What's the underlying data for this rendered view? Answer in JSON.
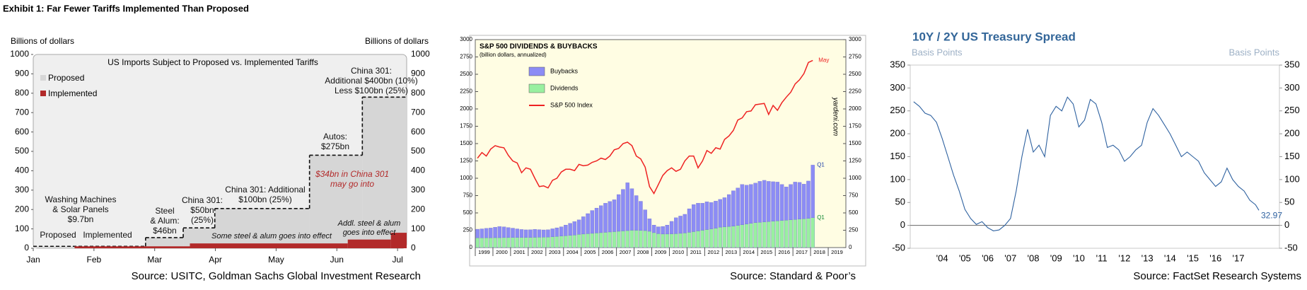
{
  "title": "Exhibit 1: Far Fewer Tariffs Implemented Than Proposed",
  "chart_data": [
    {
      "type": "step-area",
      "title": "US Imports Subject to Proposed vs. Implemented Tariffs",
      "y_label": "Billions of dollars",
      "y2_label": "Billions of dollars",
      "xlim": [
        0,
        6.15
      ],
      "xticks": [
        {
          "value": 0,
          "label": "Jan"
        },
        {
          "value": 1,
          "label": "Feb"
        },
        {
          "value": 2,
          "label": "Mar"
        },
        {
          "value": 3,
          "label": "Apr"
        },
        {
          "value": 4,
          "label": "May"
        },
        {
          "value": 5,
          "label": "Jun"
        },
        {
          "value": 6,
          "label": "Jul"
        }
      ],
      "ylim": [
        0,
        1000
      ],
      "yticks": [
        0,
        100,
        200,
        300,
        400,
        500,
        600,
        700,
        800,
        900,
        1000
      ],
      "series": [
        {
          "name": "Proposed",
          "color": "#d6d6d6",
          "dashed_outline": true,
          "x": [
            0,
            1.85,
            2.47,
            2.99,
            4.55,
            5.42
          ],
          "values": [
            10,
            55,
            105,
            205,
            480,
            780
          ]
        },
        {
          "name": "Implemented",
          "color": "#b22a2a",
          "x": [
            0.68,
            2.58,
            5.18,
            5.89
          ],
          "values": [
            10,
            25,
            45,
            80
          ]
        }
      ],
      "annotations": [
        "Washing Machines\n& Solar Panels\n$9.7bn",
        "Proposed",
        "Implemented",
        "Steel\n& Alum:\n$46bn",
        "China 301:\n$50bn\n(25%)",
        "China 301: Additional\n$100bn (25%)",
        "Autos:\n$275bn",
        "China 301:\nAdditional $400bn (10%)\nLess $100bn (25%)",
        "$34bn in China 301\nmay go into",
        "Some steel & alum goes into effect",
        "Addl. steel & alum\ngoes into effect"
      ],
      "source": "Source: USITC, Goldman Sachs Global Investment Research"
    },
    {
      "type": "stacked-bar-line",
      "title": "S&P 500 DIVIDENDS & BUYBACKS",
      "subtitle": "(billion dollars, annualized)",
      "plot_background": "#fffde3",
      "xlim": [
        1999,
        2020
      ],
      "xticks": [
        1999,
        2000,
        2001,
        2002,
        2003,
        2004,
        2005,
        2006,
        2007,
        2008,
        2009,
        2010,
        2011,
        2012,
        2013,
        2014,
        2015,
        2016,
        2017,
        2018,
        2019
      ],
      "ylim": [
        0,
        3000
      ],
      "yticks": [
        0,
        250,
        500,
        750,
        1000,
        1250,
        1500,
        1750,
        2000,
        2250,
        2500,
        2750,
        3000
      ],
      "y2lim": [
        0,
        3000
      ],
      "y2ticks": [
        0,
        250,
        500,
        750,
        1000,
        1250,
        1500,
        1750,
        2000,
        2250,
        2500,
        2750,
        3000
      ],
      "x": [
        1999.125,
        1999.375,
        1999.625,
        1999.875,
        2000.125,
        2000.375,
        2000.625,
        2000.875,
        2001.125,
        2001.375,
        2001.625,
        2001.875,
        2002.125,
        2002.375,
        2002.625,
        2002.875,
        2003.125,
        2003.375,
        2003.625,
        2003.875,
        2004.125,
        2004.375,
        2004.625,
        2004.875,
        2005.125,
        2005.375,
        2005.625,
        2005.875,
        2006.125,
        2006.375,
        2006.625,
        2006.875,
        2007.125,
        2007.375,
        2007.625,
        2007.875,
        2008.125,
        2008.375,
        2008.625,
        2008.875,
        2009.125,
        2009.375,
        2009.625,
        2009.875,
        2010.125,
        2010.375,
        2010.625,
        2010.875,
        2011.125,
        2011.375,
        2011.625,
        2011.875,
        2012.125,
        2012.375,
        2012.625,
        2012.875,
        2013.125,
        2013.375,
        2013.625,
        2013.875,
        2014.125,
        2014.375,
        2014.625,
        2014.875,
        2015.125,
        2015.375,
        2015.625,
        2015.875,
        2016.125,
        2016.375,
        2016.625,
        2016.875,
        2017.125,
        2017.375,
        2017.625,
        2017.875,
        2018.125
      ],
      "series": [
        {
          "name": "Dividends",
          "color": "#99f0a0",
          "values": [
            140,
            140,
            142,
            142,
            143,
            143,
            144,
            144,
            145,
            145,
            146,
            146,
            147,
            148,
            149,
            150,
            152,
            156,
            160,
            165,
            170,
            175,
            180,
            190,
            195,
            200,
            205,
            210,
            215,
            220,
            225,
            230,
            235,
            240,
            245,
            250,
            250,
            248,
            245,
            235,
            215,
            200,
            195,
            195,
            198,
            200,
            205,
            210,
            220,
            230,
            240,
            250,
            260,
            270,
            280,
            295,
            300,
            305,
            310,
            320,
            330,
            340,
            350,
            360,
            365,
            370,
            375,
            380,
            385,
            390,
            395,
            400,
            405,
            410,
            415,
            420,
            430
          ]
        },
        {
          "name": "Buybacks",
          "color": "#8c8cf5",
          "values": [
            125,
            130,
            135,
            140,
            150,
            160,
            155,
            145,
            135,
            125,
            115,
            110,
            110,
            115,
            110,
            105,
            105,
            115,
            125,
            135,
            155,
            175,
            195,
            210,
            250,
            290,
            330,
            360,
            390,
            420,
            440,
            460,
            530,
            600,
            690,
            600,
            500,
            420,
            300,
            180,
            110,
            100,
            110,
            130,
            180,
            230,
            250,
            270,
            340,
            390,
            400,
            390,
            400,
            380,
            390,
            400,
            420,
            460,
            510,
            540,
            580,
            560,
            560,
            570,
            590,
            600,
            580,
            570,
            560,
            520,
            480,
            510,
            540,
            530,
            500,
            540,
            760
          ]
        },
        {
          "name": "S&P 500 Index",
          "color": "#ee2222",
          "axis": "y2",
          "values": [
            1290,
            1370,
            1320,
            1420,
            1470,
            1450,
            1440,
            1330,
            1250,
            1220,
            1080,
            1150,
            1130,
            1000,
            880,
            890,
            860,
            970,
            1000,
            1090,
            1130,
            1130,
            1110,
            1200,
            1180,
            1190,
            1230,
            1250,
            1290,
            1270,
            1320,
            1410,
            1430,
            1500,
            1520,
            1470,
            1320,
            1280,
            1160,
            880,
            780,
            910,
            1040,
            1110,
            1150,
            1100,
            1130,
            1250,
            1320,
            1320,
            1150,
            1250,
            1400,
            1360,
            1440,
            1420,
            1560,
            1610,
            1690,
            1840,
            1870,
            1960,
            1970,
            2060,
            2070,
            2080,
            1920,
            2050,
            1980,
            2090,
            2170,
            2240,
            2360,
            2420,
            2510,
            2670,
            2700
          ]
        }
      ],
      "legend_order": [
        1,
        0,
        2
      ],
      "annotations": [
        "Q1",
        "Q1",
        "May",
        "yardeni.com"
      ],
      "source": "Source: Standard & Poor’s"
    },
    {
      "type": "line",
      "title": "10Y / 2Y US Treasury Spread",
      "y_label": "Basis Points",
      "y2_label": "Basis Points",
      "xlim": [
        2003.1,
        2019.3
      ],
      "xticks": [
        {
          "value": 2004.5,
          "label": "'04"
        },
        {
          "value": 2005.5,
          "label": "'05"
        },
        {
          "value": 2006.5,
          "label": "'06"
        },
        {
          "value": 2007.5,
          "label": "'07"
        },
        {
          "value": 2008.5,
          "label": "'08"
        },
        {
          "value": 2009.5,
          "label": "'09"
        },
        {
          "value": 2010.5,
          "label": "'10"
        },
        {
          "value": 2011.5,
          "label": "'11"
        },
        {
          "value": 2012.5,
          "label": "'12"
        },
        {
          "value": 2013.5,
          "label": "'13"
        },
        {
          "value": 2014.5,
          "label": "'14"
        },
        {
          "value": 2015.5,
          "label": "'15"
        },
        {
          "value": 2016.5,
          "label": "'16"
        },
        {
          "value": 2017.5,
          "label": "'17"
        }
      ],
      "ylim": [
        -50,
        350
      ],
      "yticks": [
        -50,
        0,
        50,
        100,
        150,
        200,
        250,
        300,
        350
      ],
      "zero_line": true,
      "x": [
        2003.25,
        2003.5,
        2003.75,
        2004.0,
        2004.25,
        2004.5,
        2004.75,
        2005.0,
        2005.25,
        2005.5,
        2005.75,
        2006.0,
        2006.25,
        2006.5,
        2006.75,
        2007.0,
        2007.25,
        2007.5,
        2007.75,
        2008.0,
        2008.25,
        2008.5,
        2008.75,
        2009.0,
        2009.25,
        2009.5,
        2009.75,
        2010.0,
        2010.25,
        2010.5,
        2010.75,
        2011.0,
        2011.25,
        2011.5,
        2011.75,
        2012.0,
        2012.25,
        2012.5,
        2012.75,
        2013.0,
        2013.25,
        2013.5,
        2013.75,
        2014.0,
        2014.25,
        2014.5,
        2014.75,
        2015.0,
        2015.25,
        2015.5,
        2015.75,
        2016.0,
        2016.25,
        2016.5,
        2016.75,
        2017.0,
        2017.25,
        2017.5,
        2017.75,
        2018.0,
        2018.25,
        2018.4
      ],
      "series": [
        {
          "name": "10Y / 2Y Spread",
          "color": "#2f62a0",
          "values": [
            270,
            260,
            245,
            240,
            225,
            190,
            150,
            110,
            75,
            35,
            15,
            2,
            8,
            -5,
            -12,
            -10,
            0,
            15,
            75,
            150,
            210,
            160,
            175,
            150,
            240,
            260,
            250,
            280,
            265,
            215,
            230,
            275,
            265,
            225,
            170,
            175,
            165,
            140,
            150,
            165,
            175,
            225,
            255,
            240,
            220,
            200,
            175,
            150,
            160,
            150,
            140,
            115,
            100,
            85,
            95,
            125,
            100,
            85,
            75,
            55,
            45,
            32.97
          ]
        }
      ],
      "source": "Source: FactSet Research Systems"
    }
  ]
}
